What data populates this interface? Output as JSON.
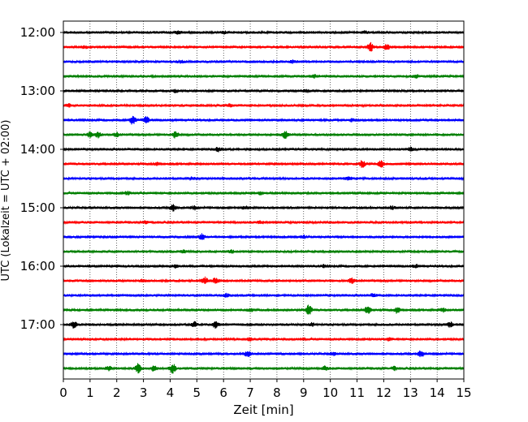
{
  "chart_data": {
    "type": "line",
    "title": "",
    "xlabel": "Zeit  [min]",
    "ylabel": "UTC (Lokalzeit = UTC + 02:00)",
    "xlim": [
      0,
      15
    ],
    "x_ticks": [
      "0",
      "1",
      "2",
      "3",
      "4",
      "5",
      "6",
      "7",
      "8",
      "9",
      "10",
      "11",
      "12",
      "13",
      "14",
      "15"
    ],
    "y_tick_labels": [
      "12:00",
      "13:00",
      "14:00",
      "15:00",
      "16:00",
      "17:00"
    ],
    "grid": "vertical dotted lines at each minute",
    "trace_colors": [
      "#000000",
      "#ff0000",
      "#0000ff",
      "#008000"
    ],
    "traces": [
      {
        "start": "12:00",
        "color": "#000000",
        "bursts": [
          [
            4.3,
            1.5
          ],
          [
            6.0,
            1.3
          ],
          [
            11.3,
            1.3
          ]
        ]
      },
      {
        "start": "12:15",
        "color": "#ff0000",
        "bursts": [
          [
            11.5,
            5
          ],
          [
            12.1,
            3.5
          ],
          [
            0.8,
            1.2
          ]
        ]
      },
      {
        "start": "12:30",
        "color": "#0000ff",
        "bursts": [
          [
            4.4,
            1.5
          ],
          [
            8.6,
            1.3
          ]
        ]
      },
      {
        "start": "12:45",
        "color": "#008000",
        "bursts": [
          [
            9.4,
            1.5
          ],
          [
            13.2,
            2
          ]
        ]
      },
      {
        "start": "13:00",
        "color": "#000000",
        "bursts": [
          [
            4.2,
            1.4
          ],
          [
            9.1,
            1.3
          ]
        ]
      },
      {
        "start": "13:15",
        "color": "#ff0000",
        "bursts": [
          [
            0.2,
            1.5
          ],
          [
            6.2,
            1.3
          ]
        ]
      },
      {
        "start": "13:30",
        "color": "#0000ff",
        "bursts": [
          [
            2.6,
            5
          ],
          [
            3.1,
            3.5
          ],
          [
            10.8,
            1.3
          ]
        ]
      },
      {
        "start": "13:45",
        "color": "#008000",
        "bursts": [
          [
            1.3,
            3.5
          ],
          [
            4.2,
            3.5
          ],
          [
            8.3,
            4
          ],
          [
            1.0,
            2.5
          ],
          [
            2.0,
            2.2
          ]
        ]
      },
      {
        "start": "14:00",
        "color": "#000000",
        "bursts": [
          [
            5.8,
            2
          ],
          [
            13.0,
            2
          ]
        ]
      },
      {
        "start": "14:15",
        "color": "#ff0000",
        "bursts": [
          [
            11.2,
            4
          ],
          [
            11.9,
            3.5
          ],
          [
            3.5,
            1.3
          ]
        ]
      },
      {
        "start": "14:30",
        "color": "#0000ff",
        "bursts": [
          [
            10.7,
            2
          ],
          [
            4.8,
            1.2
          ]
        ]
      },
      {
        "start": "14:45",
        "color": "#008000",
        "bursts": [
          [
            2.4,
            1.5
          ],
          [
            7.4,
            1.3
          ]
        ]
      },
      {
        "start": "15:00",
        "color": "#000000",
        "bursts": [
          [
            4.1,
            3.5
          ],
          [
            4.9,
            2
          ],
          [
            6.8,
            1.5
          ],
          [
            12.3,
            1.5
          ]
        ]
      },
      {
        "start": "15:15",
        "color": "#ff0000",
        "bursts": [
          [
            3.1,
            1.5
          ],
          [
            7.4,
            1.2
          ]
        ]
      },
      {
        "start": "15:30",
        "color": "#0000ff",
        "bursts": [
          [
            5.2,
            3
          ],
          [
            9.0,
            1.3
          ]
        ]
      },
      {
        "start": "15:45",
        "color": "#008000",
        "bursts": [
          [
            4.5,
            1.4
          ],
          [
            6.3,
            1.2
          ]
        ]
      },
      {
        "start": "16:00",
        "color": "#000000",
        "bursts": [
          [
            4.2,
            1.8
          ],
          [
            9.8,
            1.5
          ],
          [
            13.2,
            1.5
          ]
        ]
      },
      {
        "start": "16:15",
        "color": "#ff0000",
        "bursts": [
          [
            5.3,
            4
          ],
          [
            5.7,
            3
          ],
          [
            10.8,
            3
          ],
          [
            3.0,
            1.5
          ]
        ]
      },
      {
        "start": "16:30",
        "color": "#0000ff",
        "bursts": [
          [
            6.1,
            1.5
          ],
          [
            11.6,
            1.4
          ]
        ]
      },
      {
        "start": "16:45",
        "color": "#008000",
        "bursts": [
          [
            9.2,
            5.5
          ],
          [
            11.4,
            4
          ],
          [
            12.5,
            3.5
          ],
          [
            14.2,
            2
          ],
          [
            7.0,
            1.6
          ]
        ]
      },
      {
        "start": "17:00",
        "color": "#000000",
        "bursts": [
          [
            0.4,
            4
          ],
          [
            4.9,
            3
          ],
          [
            5.7,
            3.5
          ],
          [
            14.5,
            3
          ],
          [
            9.3,
            1.6
          ]
        ]
      },
      {
        "start": "17:15",
        "color": "#ff0000",
        "bursts": [
          [
            7.0,
            1.5
          ],
          [
            12.2,
            1.4
          ]
        ]
      },
      {
        "start": "17:30",
        "color": "#0000ff",
        "bursts": [
          [
            6.9,
            3.5
          ],
          [
            13.4,
            3.5
          ],
          [
            10.1,
            1.5
          ]
        ]
      },
      {
        "start": "17:45",
        "color": "#008000",
        "bursts": [
          [
            2.8,
            5
          ],
          [
            4.1,
            5
          ],
          [
            3.4,
            3
          ],
          [
            1.7,
            2
          ],
          [
            9.8,
            2
          ],
          [
            12.4,
            1.8
          ]
        ]
      }
    ]
  }
}
